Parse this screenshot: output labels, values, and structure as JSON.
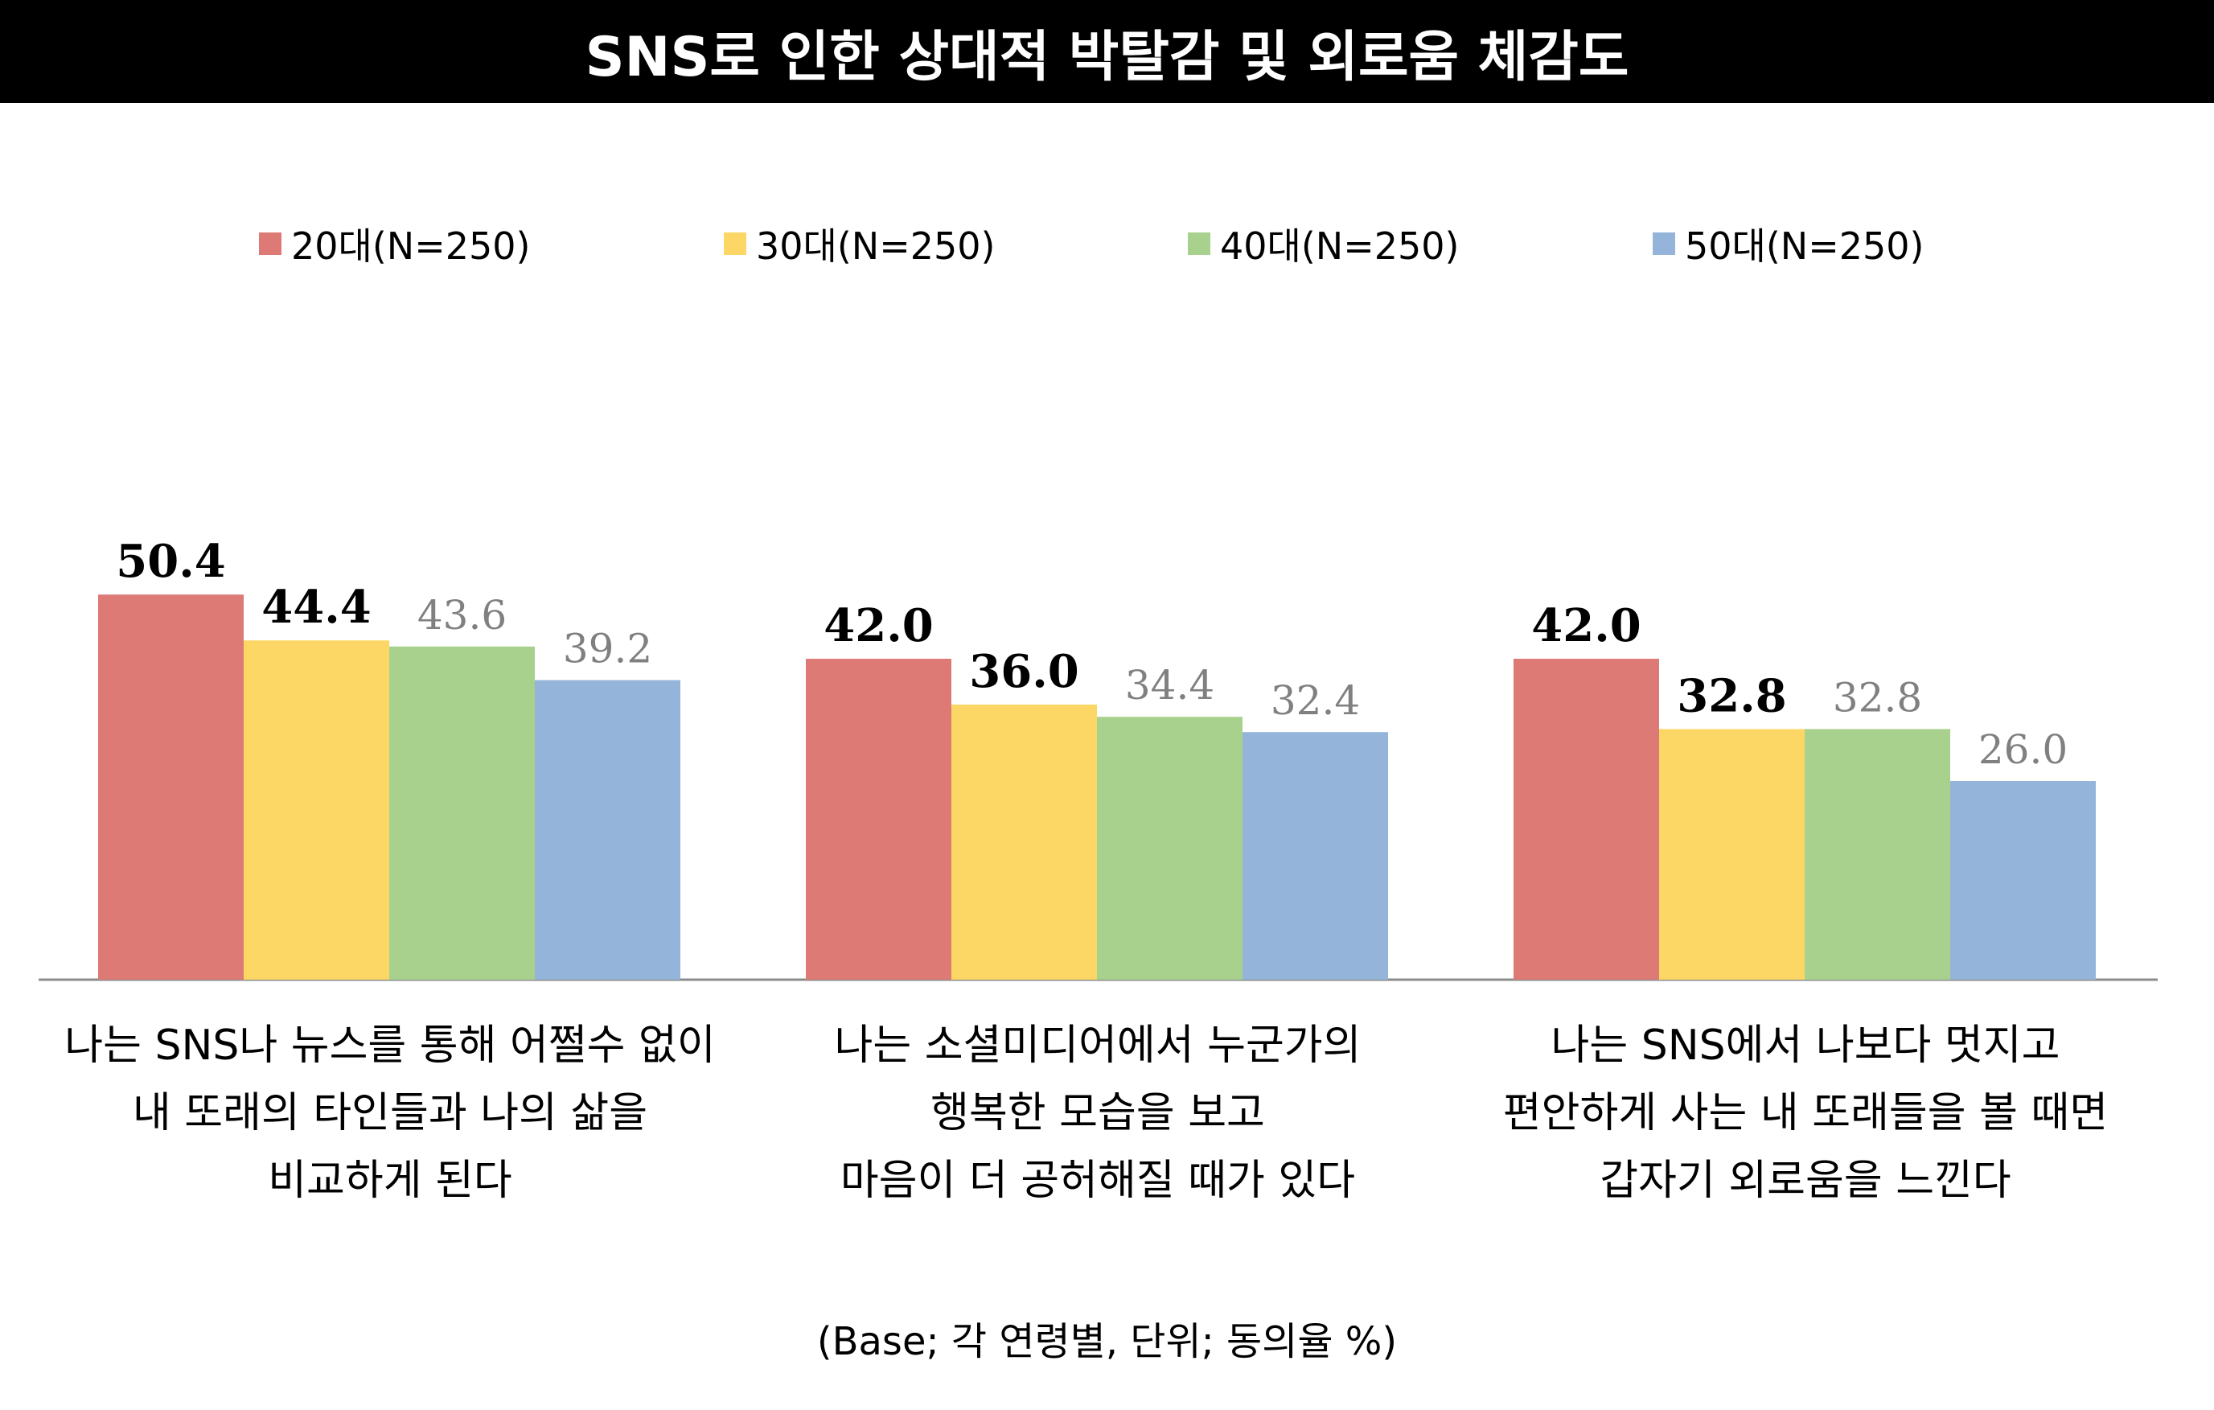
{
  "chart_data": {
    "type": "bar",
    "title": "SNS로 인한 상대적 박탈감 및 외로움 체감도",
    "categories": [
      [
        "나는 SNS나 뉴스를 통해 어쩔수 없이",
        "내 또래의 타인들과 나의 삶을",
        "비교하게 된다"
      ],
      [
        "나는 소셜미디어에서 누군가의",
        "행복한 모습을 보고",
        "마음이 더 공허해질 때가 있다"
      ],
      [
        "나는 SNS에서 나보다 멋지고",
        "편안하게 사는 내 또래들을 볼 때면",
        "갑자기 외로움을 느낀다"
      ]
    ],
    "series": [
      {
        "name": "20대(N=250)",
        "color": "#DE7A76",
        "values": [
          50.4,
          42.0,
          42.0
        ]
      },
      {
        "name": "30대(N=250)",
        "color": "#FCD766",
        "values": [
          44.4,
          36.0,
          32.8
        ]
      },
      {
        "name": "40대(N=250)",
        "color": "#A9D18E",
        "values": [
          43.6,
          34.4,
          32.8
        ]
      },
      {
        "name": "50대(N=250)",
        "color": "#94B4DA",
        "values": [
          39.2,
          32.4,
          26.0
        ]
      }
    ],
    "value_labels": [
      [
        "50.4",
        "44.4",
        "43.6",
        "39.2"
      ],
      [
        "42.0",
        "36.0",
        "34.4",
        "32.4"
      ],
      [
        "42.0",
        "32.8",
        "32.8",
        "26.0"
      ]
    ],
    "label_styles": [
      "dark",
      "dark",
      "gray",
      "gray"
    ],
    "legend_position": "top",
    "grid": false
  },
  "note": "(Base; 각 연령별, 단위; 동의율 %)"
}
